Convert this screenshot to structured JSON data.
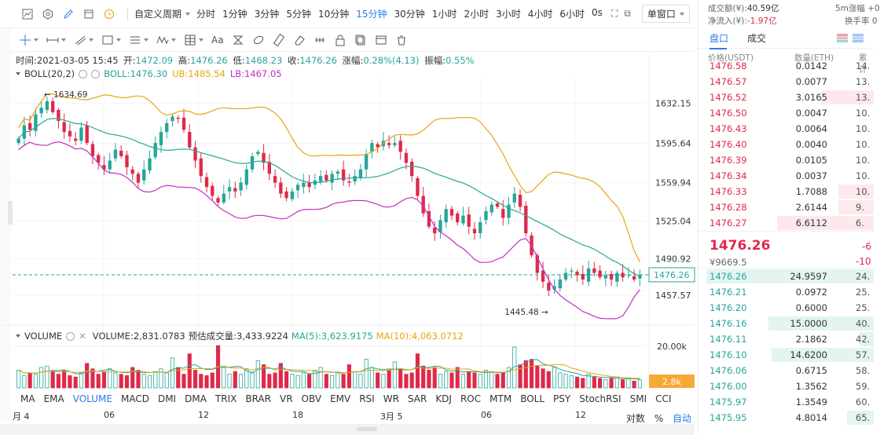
{
  "toolbar": {
    "custom_period": "自定义周期",
    "periods": [
      "分时",
      "1分钟",
      "3分钟",
      "5分钟",
      "10分钟",
      "15分钟",
      "30分钟",
      "1小时",
      "2小时",
      "3小时",
      "4小时",
      "6小时",
      "0s"
    ],
    "active_period": "15分钟",
    "window_mode": "单窗口"
  },
  "draw_tools": {
    "text_tool": "Aa"
  },
  "ohlc": {
    "time_label": "时间:",
    "time": "2021-03-05 15:45",
    "open_label": "开:",
    "open": "1472.09",
    "high_label": "高:",
    "high": "1476.26",
    "low_label": "低:",
    "low": "1468.23",
    "close_label": "收:",
    "close": "1476.26",
    "change_label": "涨幅:",
    "change": "0.28%(4.13)",
    "amplitude_label": "振幅:",
    "amplitude": "0.55%"
  },
  "boll_legend": {
    "name": "BOLL(20,2)",
    "boll": "BOLL:1476.30",
    "ub": "UB:1485.54",
    "lb": "LB:1467.05"
  },
  "volume_legend": {
    "name": "VOLUME",
    "volume": "VOLUME:2,831.0783",
    "estimated": "预估成交量:3,433.9224",
    "ma5": "MA(5):3,623.9175",
    "ma10": "MA(10):4,063.0712"
  },
  "indicator_tabs": [
    "MA",
    "EMA",
    "VOLUME",
    "MACD",
    "DMI",
    "DMA",
    "TRIX",
    "BRAR",
    "VR",
    "OBV",
    "EMV",
    "RSI",
    "WR",
    "SAR",
    "KDJ",
    "ROC",
    "MTM",
    "BOLL",
    "PSY",
    "StochRSI",
    "SMI",
    "CCI"
  ],
  "active_indicator": "VOLUME",
  "bottom_controls": {
    "log": "对数",
    "percent": "%",
    "auto": "自动"
  },
  "date_axis": [
    "月 4",
    "06",
    "12",
    "18",
    "3月 5",
    "06",
    "12"
  ],
  "chart_data": {
    "type": "candlestick",
    "price_axis_ticks": [
      "1632.15",
      "1595.64",
      "1559.94",
      "1525.04",
      "1490.92",
      "1457.57"
    ],
    "current_price_label": "1476.26",
    "high_annotation": "1634.69",
    "low_annotation": "1445.48",
    "volume_axis_tick": "20.00k",
    "current_volume_label": "2.8k",
    "ylim": [
      1432,
      1656
    ],
    "volume_max": 20000,
    "close_path": [
      1600,
      1612,
      1608,
      1622,
      1628,
      1634,
      1624,
      1616,
      1606,
      1602,
      1598,
      1610,
      1596,
      1584,
      1578,
      1572,
      1580,
      1590,
      1584,
      1574,
      1568,
      1560,
      1572,
      1582,
      1596,
      1606,
      1614,
      1620,
      1618,
      1608,
      1592,
      1580,
      1566,
      1556,
      1548,
      1542,
      1550,
      1556,
      1552,
      1560,
      1572,
      1584,
      1588,
      1578,
      1568,
      1560,
      1550,
      1546,
      1552,
      1558,
      1560,
      1556,
      1562,
      1566,
      1562,
      1568,
      1570,
      1562,
      1560,
      1566,
      1572,
      1586,
      1596,
      1592,
      1598,
      1594,
      1596,
      1588,
      1578,
      1566,
      1548,
      1532,
      1520,
      1514,
      1526,
      1536,
      1530,
      1524,
      1530,
      1520,
      1514,
      1524,
      1534,
      1540,
      1538,
      1528,
      1540,
      1550,
      1538,
      1514,
      1494,
      1478,
      1470,
      1462,
      1466,
      1472,
      1478,
      1480,
      1476,
      1472,
      1482,
      1478,
      1474,
      1476,
      1472,
      1478,
      1474,
      1476,
      1472,
      1476
    ],
    "volume_path": [
      0.26,
      0.18,
      0.22,
      0.2,
      0.3,
      0.32,
      0.24,
      0.2,
      0.26,
      0.18,
      0.16,
      0.22,
      0.36,
      0.28,
      0.2,
      0.24,
      0.28,
      0.22,
      0.2,
      0.18,
      0.3,
      0.26,
      0.2,
      0.18,
      0.24,
      0.28,
      0.22,
      0.44,
      0.3,
      0.2,
      0.5,
      0.26,
      0.2,
      0.18,
      0.22,
      0.62,
      0.3,
      0.2,
      0.24,
      0.2,
      0.28,
      0.22,
      0.4,
      0.34,
      0.2,
      0.22,
      0.36,
      0.24,
      0.2,
      0.18,
      0.22,
      0.2,
      0.26,
      0.3,
      0.2,
      0.18,
      0.22,
      0.2,
      0.34,
      0.24,
      0.2,
      0.42,
      0.3,
      0.22,
      0.2,
      0.26,
      0.38,
      0.28,
      0.2,
      0.22,
      0.5,
      0.32,
      0.26,
      0.3,
      0.2,
      0.24,
      0.22,
      0.3,
      0.2,
      0.24,
      0.22,
      0.2,
      0.26,
      0.24,
      0.2,
      0.22,
      0.3,
      0.6,
      0.34,
      0.4,
      0.42,
      0.32,
      0.28,
      0.24,
      0.3,
      0.22,
      0.2,
      0.18,
      0.16,
      0.14,
      0.2,
      0.16,
      0.14,
      0.12,
      0.14,
      0.16,
      0.12,
      0.14,
      0.1,
      0.12
    ]
  },
  "order_panel": {
    "header": {
      "turnover_label": "成交额(¥):",
      "turnover": "40.59亿",
      "net_inflow_label": "净流入(¥):",
      "net_inflow": "-1.97亿",
      "right1": "5m涨幅 +0",
      "right2": "换手率 0"
    },
    "tabs": [
      "盘口",
      "成交"
    ],
    "active_tab": "盘口",
    "columns": {
      "price": "价格(USDT)",
      "qty": "数量(ETH)",
      "total": "累计"
    },
    "asks": [
      {
        "price": "1476.58",
        "qty": "0.0142",
        "total": "14.",
        "depth": 0.0
      },
      {
        "price": "1476.57",
        "qty": "0.0077",
        "total": "13.",
        "depth": 0.0
      },
      {
        "price": "1476.52",
        "qty": "3.0165",
        "total": "13.",
        "depth": 0.3
      },
      {
        "price": "1476.50",
        "qty": "0.0047",
        "total": "10.",
        "depth": 0.0
      },
      {
        "price": "1476.43",
        "qty": "0.0064",
        "total": "10.",
        "depth": 0.0
      },
      {
        "price": "1476.40",
        "qty": "0.0040",
        "total": "10.",
        "depth": 0.0
      },
      {
        "price": "1476.39",
        "qty": "0.0105",
        "total": "10.",
        "depth": 0.0
      },
      {
        "price": "1476.34",
        "qty": "0.0037",
        "total": "10.",
        "depth": 0.0
      },
      {
        "price": "1476.33",
        "qty": "1.7088",
        "total": "10.",
        "depth": 0.2
      },
      {
        "price": "1476.28",
        "qty": "2.6144",
        "total": "9.",
        "depth": 0.2
      },
      {
        "price": "1476.27",
        "qty": "6.6112",
        "total": "6.",
        "depth": 0.55
      }
    ],
    "last_price": "1476.26",
    "cny_price": "¥9669.5",
    "change_1": "-6",
    "change_2": "-10",
    "bids": [
      {
        "price": "1476.26",
        "qty": "24.9597",
        "total": "24.",
        "depth": 0.95
      },
      {
        "price": "1476.21",
        "qty": "0.0972",
        "total": "25.",
        "depth": 0.0
      },
      {
        "price": "1476.20",
        "qty": "0.6000",
        "total": "25.",
        "depth": 0.0
      },
      {
        "price": "1476.16",
        "qty": "15.0000",
        "total": "40.",
        "depth": 0.6
      },
      {
        "price": "1476.11",
        "qty": "2.1862",
        "total": "42.",
        "depth": 0.08
      },
      {
        "price": "1476.10",
        "qty": "14.6200",
        "total": "57.",
        "depth": 0.58
      },
      {
        "price": "1476.06",
        "qty": "0.6715",
        "total": "58.",
        "depth": 0.0
      },
      {
        "price": "1476.00",
        "qty": "1.3562",
        "total": "59.",
        "depth": 0.0
      },
      {
        "price": "1475.97",
        "qty": "1.3549",
        "total": "60.",
        "depth": 0.0
      },
      {
        "price": "1475.95",
        "qty": "4.8014",
        "total": "65.",
        "depth": 0.15
      }
    ]
  },
  "colors": {
    "up": "#26a69a",
    "down": "#e0294a",
    "accent": "#2b7de9",
    "boll": "#26a69a",
    "ub": "#e9a40e",
    "lb": "#c02fc4"
  }
}
